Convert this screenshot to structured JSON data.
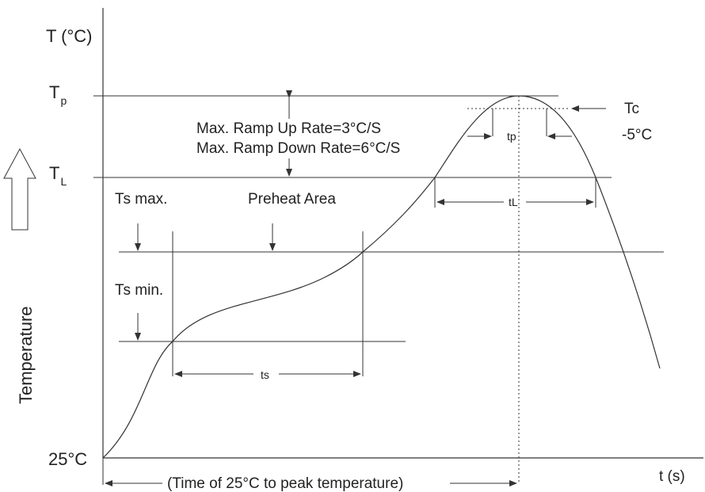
{
  "axis": {
    "y_label": "T (°C)",
    "x_label": "t (s)",
    "side_label": "Temperature",
    "origin_label": "25°C"
  },
  "levels": {
    "tp_main": "T",
    "tp_sub": "p",
    "tl_main": "T",
    "tl_sub": "L"
  },
  "annotations": {
    "ramp_up": "Max. Ramp Up Rate=3°C/S",
    "ramp_down": "Max. Ramp Down Rate=6°C/S",
    "tc_line1": "Tc",
    "tc_line2": "-5°C",
    "ts_max_main": "T",
    "ts_max_rest": "s max.",
    "ts_min_main": "T",
    "ts_min_rest": "s min.",
    "preheat": "Preheat Area",
    "ts": "ts",
    "tp_interval": "tp",
    "tl_interval": "tL",
    "total_time": "(Time of 25°C to peak temperature)"
  }
}
